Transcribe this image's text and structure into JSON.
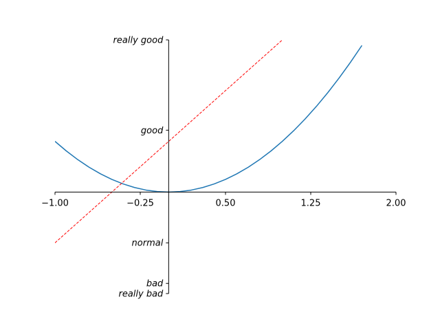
{
  "chart_data": {
    "type": "line",
    "title": "",
    "xlabel": "",
    "ylabel": "",
    "xlim": [
      -1.0,
      2.0
    ],
    "ylim": [
      -2.0,
      3.0
    ],
    "grid": false,
    "axes_style": "spines centered at origin (x-axis at y=0, y-axis at x=0)",
    "xticks": [
      {
        "value": -1.0,
        "label": "−1.00"
      },
      {
        "value": -0.25,
        "label": "−0.25"
      },
      {
        "value": 0.5,
        "label": "0.50"
      },
      {
        "value": 1.25,
        "label": "1.25"
      },
      {
        "value": 2.0,
        "label": "2.00"
      }
    ],
    "yticks": [
      {
        "value": -2.0,
        "label": "really bad"
      },
      {
        "value": -1.8,
        "label": "bad"
      },
      {
        "value": -1.0,
        "label": "normal"
      },
      {
        "value": 1.22,
        "label": "good"
      },
      {
        "value": 3.0,
        "label": "really good"
      }
    ],
    "series": [
      {
        "color": "#1f77b4",
        "style": "solid",
        "x": [
          -1.0,
          -0.9,
          -0.8,
          -0.7,
          -0.6,
          -0.5,
          -0.4,
          -0.3,
          -0.2,
          -0.1,
          0.0,
          0.1,
          0.2,
          0.3,
          0.4,
          0.5,
          0.6,
          0.7,
          0.8,
          0.9,
          1.0,
          1.1,
          1.2,
          1.3,
          1.4,
          1.5,
          1.6,
          1.7
        ],
        "values": [
          1.0,
          0.81,
          0.64,
          0.49,
          0.36,
          0.25,
          0.16,
          0.09,
          0.04,
          0.01,
          0.0,
          0.01,
          0.04,
          0.09,
          0.16,
          0.25,
          0.36,
          0.49,
          0.64,
          0.81,
          1.0,
          1.21,
          1.44,
          1.69,
          1.96,
          2.25,
          2.56,
          2.89
        ]
      },
      {
        "color": "#ff0000",
        "style": "dashed",
        "x": [
          -1.0,
          1.0
        ],
        "values": [
          -1.0,
          3.0
        ]
      }
    ]
  }
}
